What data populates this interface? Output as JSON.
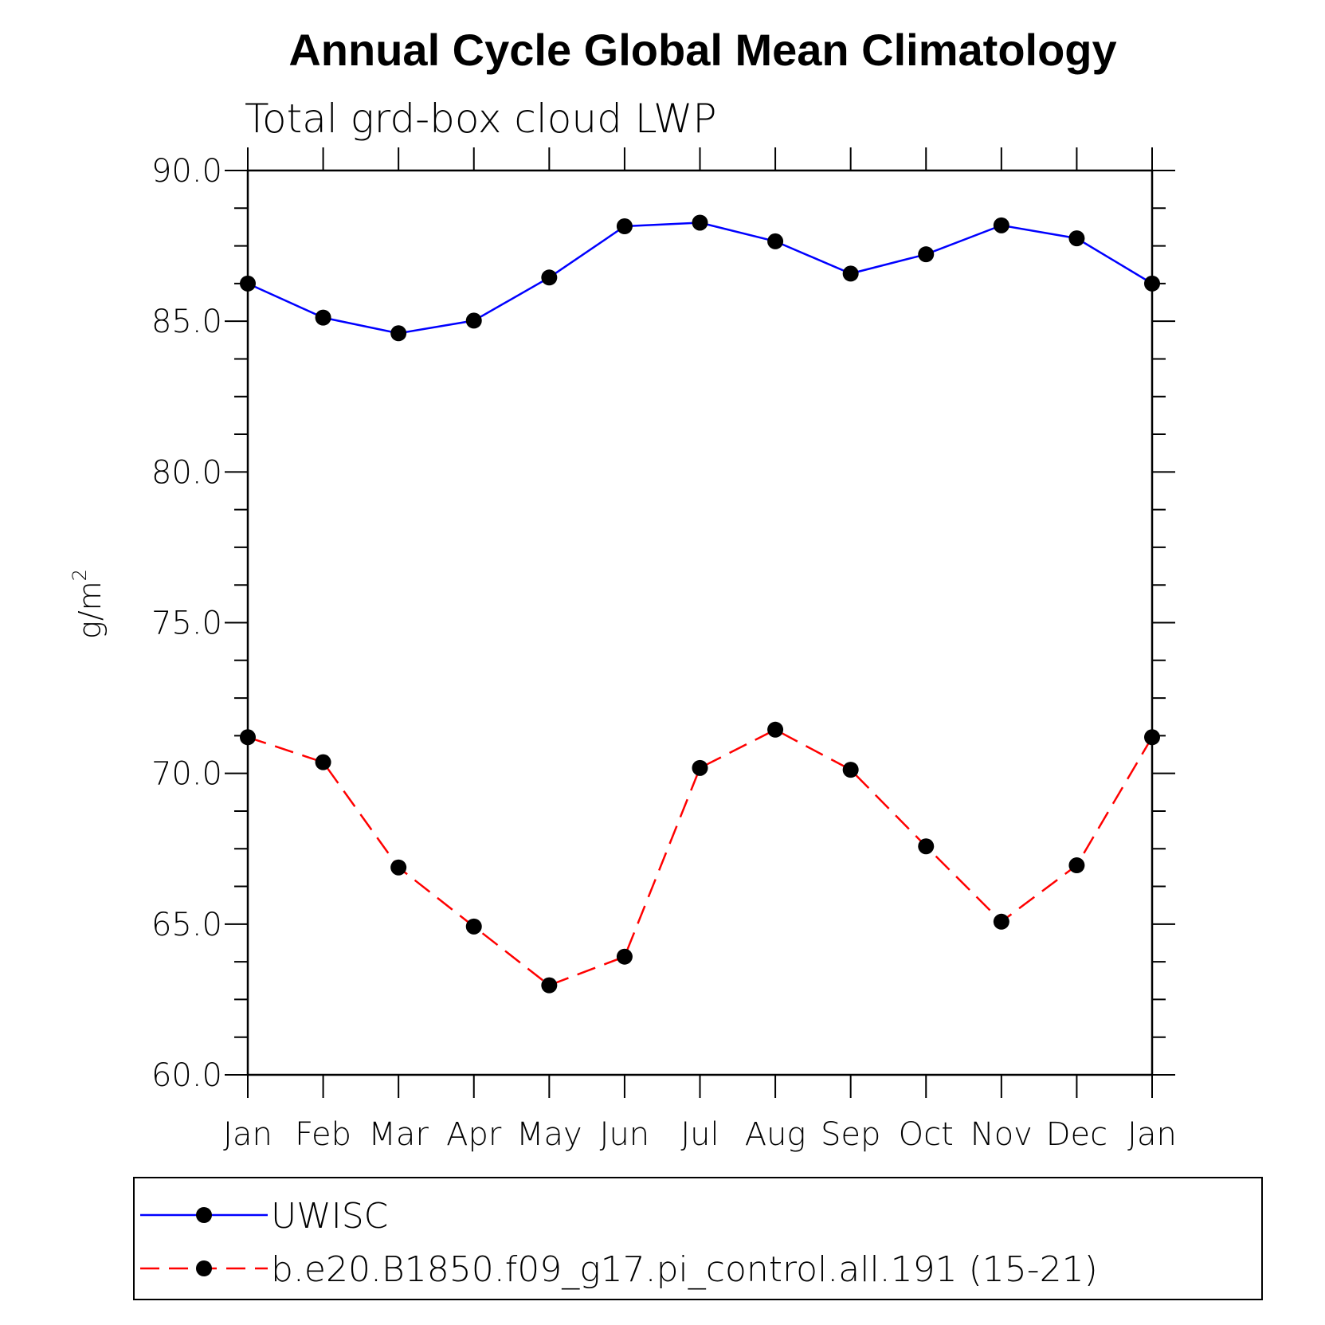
{
  "chart_data": {
    "type": "line",
    "title": "Annual Cycle Global Mean Climatology",
    "subtitle": "Total grd-box cloud LWP",
    "ylabel": "g/m",
    "ylabel_sup": "2",
    "xlabel": "",
    "ylim": [
      60.0,
      90.0
    ],
    "y_ticks": [
      "60.0",
      "65.0",
      "70.0",
      "75.0",
      "80.0",
      "85.0",
      "90.0"
    ],
    "categories": [
      "Jan",
      "Feb",
      "Mar",
      "Apr",
      "May",
      "Jun",
      "Jul",
      "Aug",
      "Sep",
      "Oct",
      "Nov",
      "Dec",
      "Jan"
    ],
    "grid": false,
    "legend_position": "bottom",
    "series": [
      {
        "name": "UWISC",
        "color": "#0000ff",
        "line_style": "solid",
        "marker": "filled-circle",
        "values": [
          86.25,
          85.12,
          84.6,
          85.02,
          86.45,
          88.15,
          88.27,
          87.65,
          86.58,
          87.22,
          88.18,
          87.75,
          86.25
        ]
      },
      {
        "name": "b.e20.B1850.f09_g17.pi_control.all.191 (15-21)",
        "color": "#ff0000",
        "line_style": "dashed",
        "marker": "filled-circle",
        "values": [
          71.2,
          70.37,
          66.88,
          64.92,
          62.97,
          63.92,
          70.18,
          71.45,
          70.12,
          67.58,
          65.08,
          66.95,
          71.2
        ]
      }
    ]
  }
}
